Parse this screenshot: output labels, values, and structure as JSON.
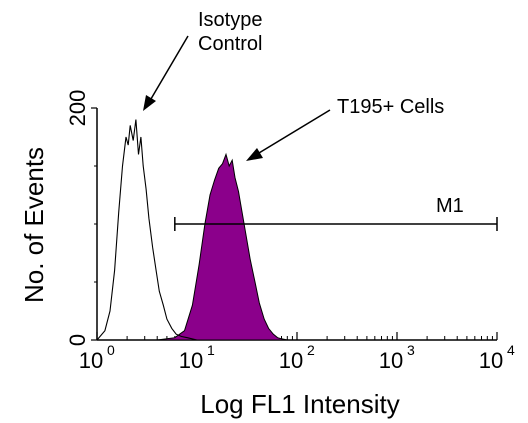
{
  "chart_data": {
    "type": "area",
    "title": "",
    "xlabel": "Log FL1 Intensity",
    "ylabel": "No. of Events",
    "x_scale": "log",
    "xlim": [
      1,
      10000
    ],
    "ylim": [
      0,
      200
    ],
    "x_ticks": [
      {
        "base": "10",
        "exp": "0",
        "value": 1
      },
      {
        "base": "10",
        "exp": "1",
        "value": 10
      },
      {
        "base": "10",
        "exp": "2",
        "value": 100
      },
      {
        "base": "10",
        "exp": "3",
        "value": 1000
      },
      {
        "base": "10",
        "exp": "4",
        "value": 10000
      }
    ],
    "y_ticks": [
      "0",
      "200"
    ],
    "y_tick_values": [
      0,
      200
    ],
    "series": [
      {
        "name": "Isotype Control",
        "style": "outline",
        "color": "#000000",
        "x": [
          1.0,
          1.2,
          1.35,
          1.5,
          1.65,
          1.8,
          1.95,
          2.05,
          2.15,
          2.3,
          2.45,
          2.6,
          2.75,
          2.9,
          3.1,
          3.3,
          3.6,
          3.9,
          4.2,
          4.6,
          5.0,
          5.6,
          6.2,
          7.0,
          8.0,
          10.0
        ],
        "y": [
          0,
          8,
          25,
          60,
          110,
          150,
          175,
          168,
          185,
          172,
          190,
          160,
          175,
          150,
          130,
          105,
          80,
          60,
          42,
          30,
          18,
          10,
          5,
          3,
          2,
          0
        ]
      },
      {
        "name": "T195+ Cells",
        "style": "filled",
        "color": "#8b008b",
        "x": [
          4.0,
          6.0,
          7.5,
          9.0,
          10.5,
          12.0,
          13.5,
          15.0,
          16.5,
          18.0,
          19.5,
          21.0,
          22.5,
          24.0,
          26.0,
          28.0,
          31.0,
          34.0,
          38.0,
          42.0,
          47.0,
          52.0,
          58.0,
          64.0,
          70.0,
          80.0
        ],
        "y": [
          0,
          2,
          8,
          30,
          65,
          100,
          125,
          138,
          148,
          152,
          160,
          150,
          155,
          140,
          128,
          112,
          90,
          70,
          50,
          32,
          18,
          10,
          5,
          2,
          1,
          0
        ]
      }
    ],
    "annotations": [
      {
        "text_lines": [
          "Isotype",
          "Control"
        ],
        "points_to": "Isotype Control"
      },
      {
        "text_lines": [
          "T195+ Cells"
        ],
        "points_to": "T195+ Cells"
      }
    ],
    "marker": {
      "label": "M1",
      "x_start": 6.0,
      "x_end": 10000,
      "y": 100
    }
  }
}
